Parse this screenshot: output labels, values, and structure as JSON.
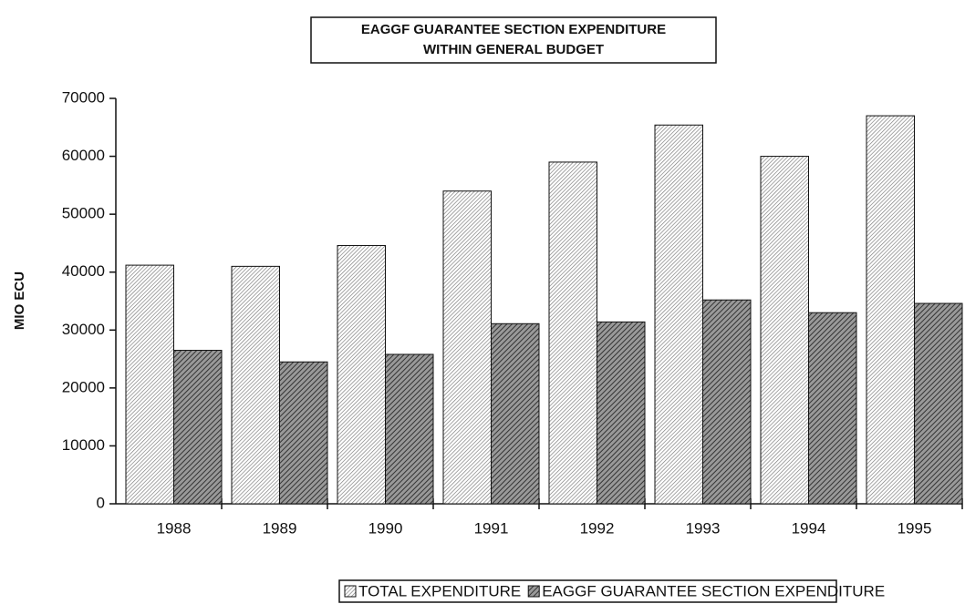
{
  "chart_data": {
    "type": "bar",
    "title": [
      "EAGGF GUARANTEE SECTION EXPENDITURE",
      "WITHIN GENERAL BUDGET"
    ],
    "y_label": "MIO ECU",
    "categories": [
      "1988",
      "1989",
      "1990",
      "1991",
      "1992",
      "1993",
      "1994",
      "1995"
    ],
    "series": [
      {
        "name": "TOTAL EXPENDITURE",
        "color": "#777777",
        "values": [
          41200,
          41000,
          44600,
          54000,
          59000,
          65400,
          60000,
          67000
        ]
      },
      {
        "name": "EAGGF GUARANTEE SECTION EXPENDITURE",
        "color": "#333333",
        "values": [
          26500,
          24500,
          25800,
          31100,
          31400,
          35200,
          33000,
          34600
        ]
      }
    ],
    "ylim": [
      0,
      70000
    ],
    "yticks": [
      0,
      10000,
      20000,
      30000,
      40000,
      50000,
      60000,
      70000
    ],
    "legend": "bottom"
  }
}
